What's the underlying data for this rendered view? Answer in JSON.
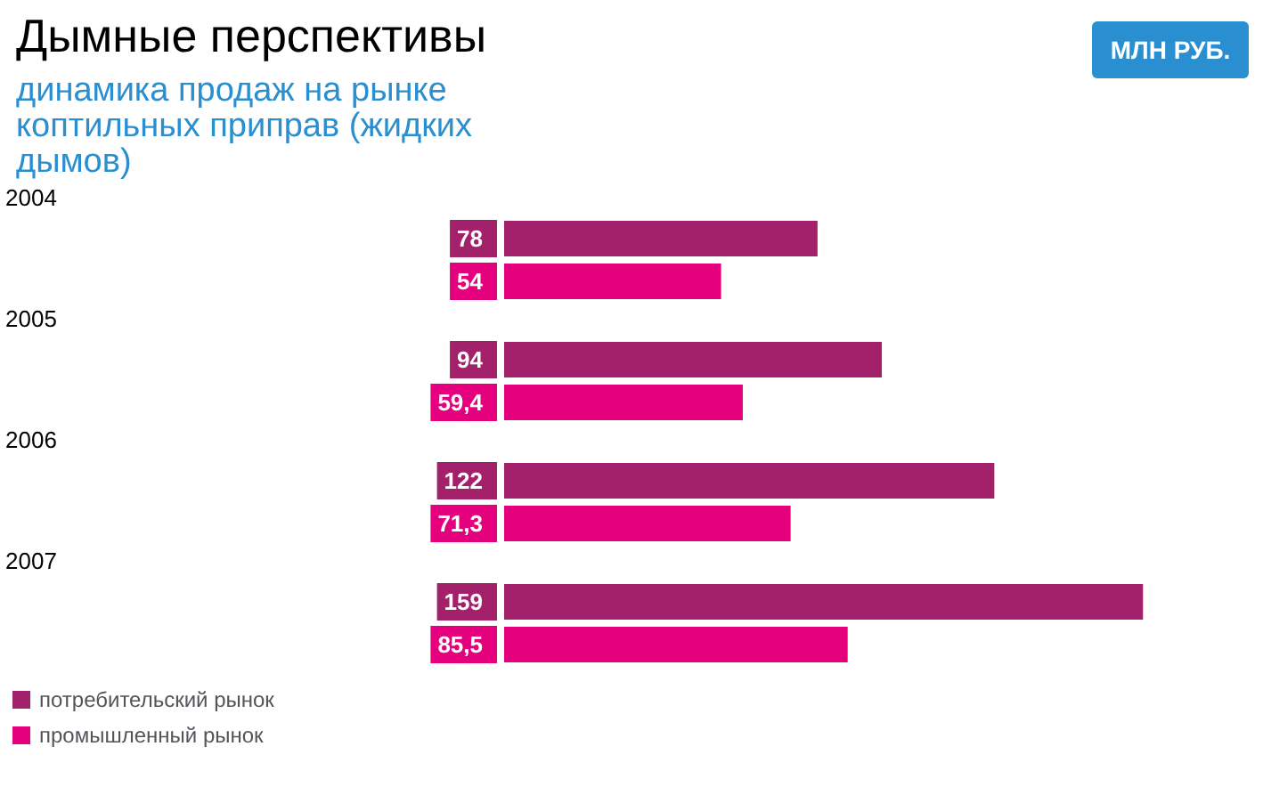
{
  "chart_data": {
    "type": "bar",
    "orientation": "horizontal",
    "title": "Дымные перспективы",
    "subtitle": "динамика продаж на рынке коптильных приправ (жидких дымов)",
    "annotations": [
      "МЛН РУБ."
    ],
    "categories": [
      "2004",
      "2005",
      "2006",
      "2007"
    ],
    "series": [
      {
        "name": "потребительский рынок",
        "color": "#a3206a",
        "values": [
          78,
          94,
          122,
          159
        ],
        "value_labels": [
          "78",
          "94",
          "122",
          "159"
        ]
      },
      {
        "name": "промышленный рынок",
        "color": "#e5007e",
        "values": [
          54,
          59.4,
          71.3,
          85.5
        ],
        "value_labels": [
          "54",
          "59,4",
          "71,3",
          "85,5"
        ]
      }
    ],
    "legend": "bottom left"
  }
}
